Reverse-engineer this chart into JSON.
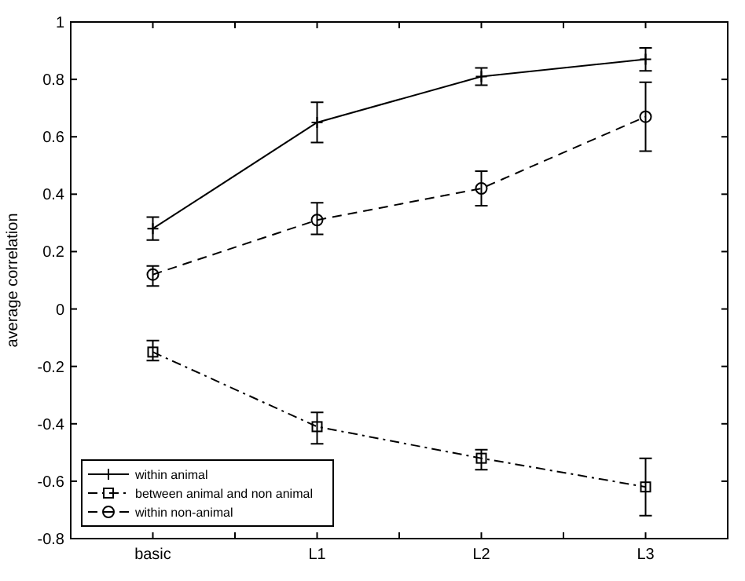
{
  "chart_data": {
    "type": "line",
    "ylabel": "average correlation",
    "categories": [
      "basic",
      "L1",
      "L2",
      "L3"
    ],
    "ylim": [
      -0.8,
      1
    ],
    "yticks": [
      -0.8,
      -0.6,
      -0.4,
      -0.2,
      0,
      0.2,
      0.4,
      0.6,
      0.8,
      1
    ],
    "grid": false,
    "legend": "bottom left",
    "series": [
      {
        "name": "within animal",
        "color": "#000000",
        "marker": "cross",
        "line_style": "solid",
        "values": [
          0.28,
          0.65,
          0.81,
          0.87
        ],
        "errors": [
          [
            0.24,
            0.32
          ],
          [
            0.58,
            0.72
          ],
          [
            0.78,
            0.84
          ],
          [
            0.83,
            0.91
          ]
        ]
      },
      {
        "name": "between animal and non animal",
        "color": "#000000",
        "marker": "square",
        "line_style": "dashdot",
        "values": [
          -0.15,
          -0.41,
          -0.52,
          -0.62
        ],
        "errors": [
          [
            -0.18,
            -0.11
          ],
          [
            -0.47,
            -0.36
          ],
          [
            -0.56,
            -0.49
          ],
          [
            -0.72,
            -0.52
          ]
        ]
      },
      {
        "name": "within non-animal",
        "color": "#000000",
        "marker": "circle",
        "line_style": "dashed",
        "values": [
          0.12,
          0.31,
          0.42,
          0.67
        ],
        "errors": [
          [
            0.08,
            0.15
          ],
          [
            0.26,
            0.37
          ],
          [
            0.36,
            0.48
          ],
          [
            0.55,
            0.79
          ]
        ]
      }
    ]
  }
}
